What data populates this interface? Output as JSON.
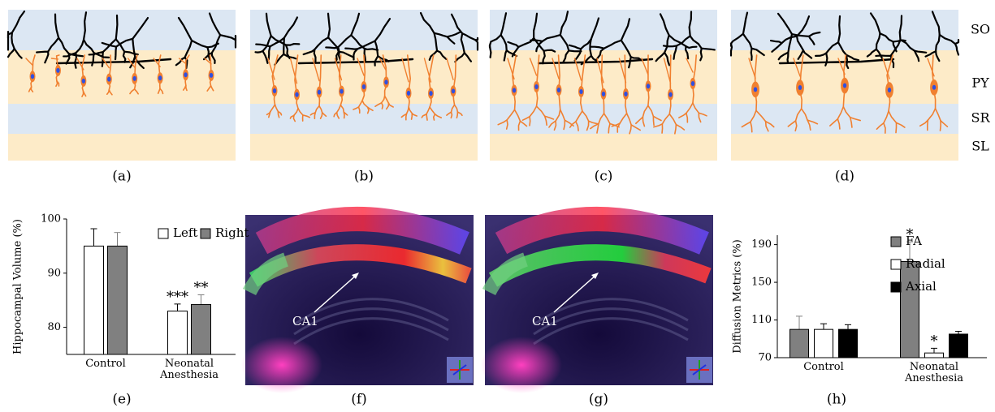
{
  "figure": {
    "panel_labels": [
      "(a)",
      "(b)",
      "(c)",
      "(d)",
      "(e)",
      "(f)",
      "(g)",
      "(h)"
    ],
    "layers": [
      "SO",
      "PY",
      "SR",
      "SL"
    ],
    "image_annotations": [
      "CA1",
      "CA1"
    ]
  },
  "chart_data": [
    {
      "type": "bar",
      "y_label": "Hippocampal Volume (%)",
      "categories": [
        "Control",
        "Neonatal Anesthesia"
      ],
      "series": [
        {
          "name": "Left",
          "color": "#ffffff",
          "values": [
            95,
            83
          ],
          "errors": [
            3.2,
            1.3
          ],
          "significance": [
            null,
            "***"
          ]
        },
        {
          "name": "Right",
          "color": "#808080",
          "values": [
            95,
            84.2
          ],
          "errors": [
            2.5,
            1.8
          ],
          "significance": [
            null,
            "**"
          ]
        }
      ],
      "ylim": [
        75,
        100
      ],
      "yticks": [
        80,
        90,
        100
      ],
      "legend": "upper right"
    },
    {
      "type": "bar",
      "y_label": "Diffusion Metrics (%)",
      "categories": [
        "Control",
        "Neonatal Anesthesia"
      ],
      "series": [
        {
          "name": "FA",
          "color": "#808080",
          "values": [
            100,
            172
          ],
          "errors": [
            14,
            21
          ],
          "significance": [
            null,
            "*"
          ]
        },
        {
          "name": "Radial",
          "color": "#ffffff",
          "values": [
            100,
            75
          ],
          "errors": [
            6,
            5
          ],
          "significance": [
            null,
            "*"
          ]
        },
        {
          "name": "Axial",
          "color": "#000000",
          "values": [
            100,
            95
          ],
          "errors": [
            5,
            3
          ],
          "significance": [
            null,
            null
          ]
        }
      ],
      "ylim": [
        70,
        200
      ],
      "yticks": [
        70,
        110,
        150,
        190
      ],
      "legend": "upper right"
    }
  ]
}
